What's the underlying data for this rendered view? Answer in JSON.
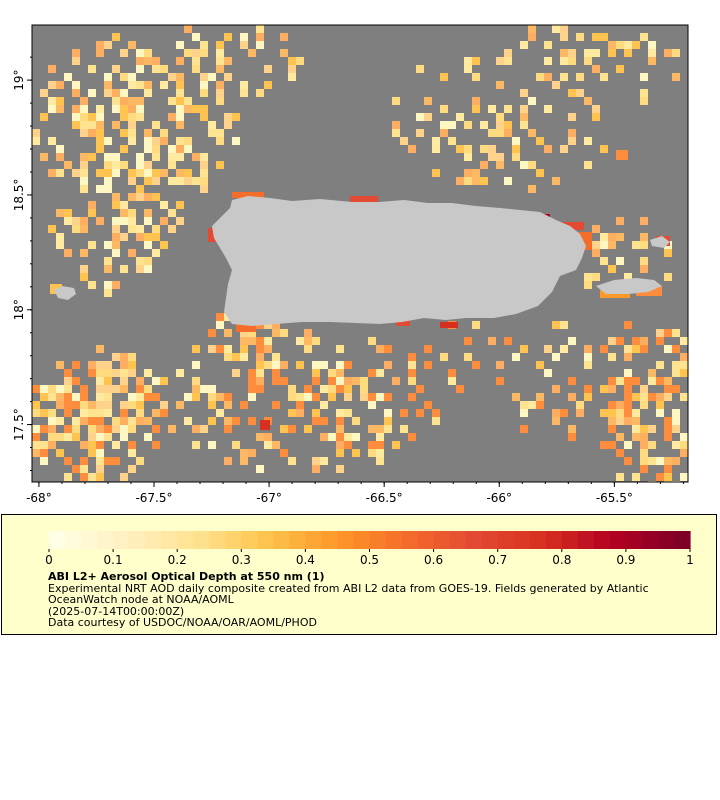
{
  "map": {
    "x_ticks": [
      "-68°",
      "-67.5°",
      "-67°",
      "-66.5°",
      "-66°",
      "-65.5°"
    ],
    "x_tick_values": [
      -68,
      -67.5,
      -67,
      -66.5,
      -66,
      -65.5
    ],
    "y_ticks": [
      "19°",
      "18.5°",
      "18°",
      "17.5°"
    ],
    "y_tick_values": [
      19,
      18.5,
      18,
      17.5
    ],
    "lon_range": [
      -68.03,
      -65.18
    ],
    "lat_range": [
      17.25,
      19.24
    ],
    "colors": {
      "no_data": "#7f7f7f",
      "land": "#c8c8c8",
      "frame": "#000000"
    }
  },
  "legend": {
    "colorbar_ticks": [
      "0",
      "0.1",
      "0.2",
      "0.3",
      "0.4",
      "0.5",
      "0.6",
      "0.7",
      "0.8",
      "0.9",
      "1"
    ],
    "colorbar_range": [
      0,
      1
    ],
    "colorbar_colors": [
      "#ffffe5",
      "#fff0c0",
      "#fee391",
      "#fec44f",
      "#fe9929",
      "#f46d2a",
      "#e34a33",
      "#d7301f",
      "#b30022",
      "#7f0026"
    ],
    "title": "ABI L2+ Aerosol Optical Depth at 550 nm (1)",
    "line1": "Experimental NRT AOD daily composite created from ABI L2 data from GOES-19. Fields generated by Atlantic OceanWatch node at NOAA/AOML",
    "line2": "(2025-07-14T00:00:00Z)",
    "line3": "Data courtesy of USDOC/NOAA/OAR/AOML/PHOD"
  }
}
